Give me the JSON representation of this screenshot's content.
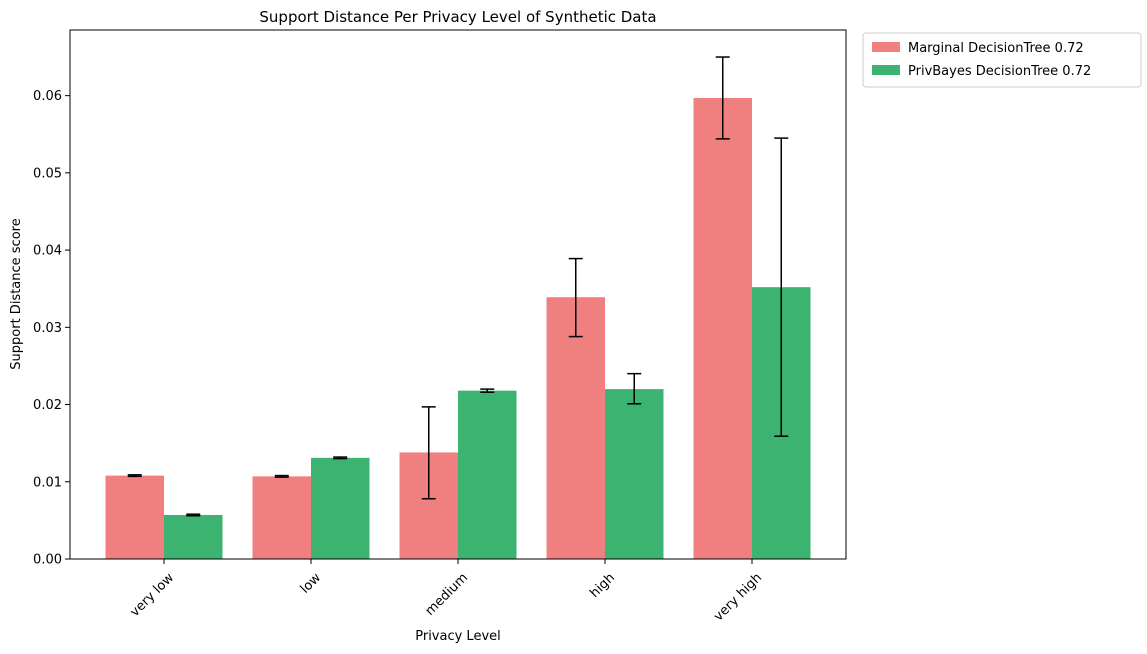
{
  "chart_data": {
    "type": "bar",
    "title": "Support Distance Per Privacy Level of Synthetic Data",
    "xlabel": "Privacy Level",
    "ylabel": "Support Distance score",
    "categories": [
      "very low",
      "low",
      "medium",
      "high",
      "very high"
    ],
    "ylim": [
      0,
      0.0685
    ],
    "yticks": [
      0.0,
      0.01,
      0.02,
      0.03,
      0.04,
      0.05,
      0.06
    ],
    "ytick_labels": [
      "0.00",
      "0.01",
      "0.02",
      "0.03",
      "0.04",
      "0.05",
      "0.06"
    ],
    "grid": false,
    "legend_position": "outside top-right",
    "series": [
      {
        "name": "Marginal DecisionTree 0.72",
        "color": "#f08080",
        "values": [
          0.0108,
          0.0107,
          0.0138,
          0.0339,
          0.0597
        ],
        "error_low": [
          0.0107,
          0.0106,
          0.0078,
          0.0288,
          0.0544
        ],
        "error_high": [
          0.0109,
          0.0108,
          0.0197,
          0.0389,
          0.065
        ]
      },
      {
        "name": "PrivBayes DecisionTree 0.72",
        "color": "#3cb371",
        "values": [
          0.0057,
          0.0131,
          0.0218,
          0.022,
          0.0352
        ],
        "error_low": [
          0.0056,
          0.013,
          0.0216,
          0.0201,
          0.0159
        ],
        "error_high": [
          0.0058,
          0.0132,
          0.022,
          0.024,
          0.0545
        ]
      }
    ]
  }
}
